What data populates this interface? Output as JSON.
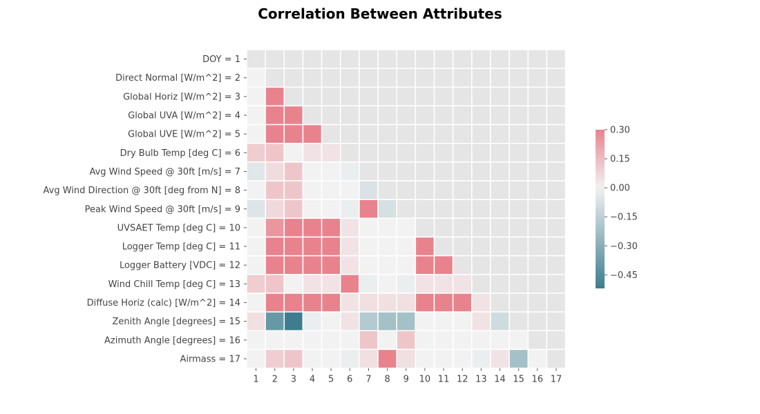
{
  "chart_data": {
    "type": "heatmap",
    "title": "Correlation Between Attributes",
    "row_labels": [
      "DOY = 1",
      "Direct Normal [W/m^2] = 2",
      "Global Horiz [W/m^2] = 3",
      "Global UVA [W/m^2] = 4",
      "Global UVE [W/m^2] = 5",
      "Dry Bulb Temp [deg C] = 6",
      "Avg Wind Speed @ 30ft [m/s] = 7",
      "Avg Wind Direction @ 30ft [deg from N] = 8",
      "Peak Wind Speed @ 30ft [m/s] = 9",
      "UVSAET Temp [deg C] = 10",
      "Logger Temp [deg C] = 11",
      "Logger Battery [VDC] = 12",
      "Wind Chill Temp [deg C] = 13",
      "Diffuse Horiz (calc) [W/m^2] = 14",
      "Zenith Angle [degrees] = 15",
      "Azimuth Angle [degrees] = 16",
      "Airmass = 17"
    ],
    "col_labels": [
      "1",
      "2",
      "3",
      "4",
      "5",
      "6",
      "7",
      "8",
      "9",
      "10",
      "11",
      "12",
      "13",
      "14",
      "15",
      "16",
      "17"
    ],
    "mask": "upper triangle including diagonal",
    "colorbar": {
      "min": -0.52,
      "max": 0.3,
      "ticks": [
        "0.30",
        "0.15",
        "0.00",
        "−0.15",
        "−0.30",
        "−0.45"
      ],
      "tick_values": [
        0.3,
        0.15,
        0.0,
        -0.15,
        -0.3,
        -0.45
      ]
    },
    "values": [
      [],
      [
        0.0
      ],
      [
        0.0,
        0.3
      ],
      [
        0.0,
        0.3,
        0.3
      ],
      [
        0.0,
        0.3,
        0.3,
        0.3
      ],
      [
        0.1,
        0.12,
        0.0,
        0.04,
        0.04
      ],
      [
        -0.05,
        0.06,
        0.12,
        0.0,
        0.0,
        -0.02
      ],
      [
        0.0,
        0.12,
        0.12,
        0.0,
        0.0,
        0.0,
        -0.07
      ],
      [
        -0.06,
        0.07,
        0.12,
        0.0,
        0.0,
        -0.02,
        0.3,
        -0.08
      ],
      [
        0.0,
        0.25,
        0.3,
        0.3,
        0.3,
        0.04,
        0.0,
        0.0,
        0.0
      ],
      [
        0.0,
        0.3,
        0.3,
        0.3,
        0.3,
        0.04,
        0.0,
        0.0,
        0.0,
        0.3
      ],
      [
        0.0,
        0.3,
        0.3,
        0.3,
        0.3,
        0.04,
        0.0,
        0.0,
        0.0,
        0.3,
        0.3
      ],
      [
        0.1,
        0.12,
        0.0,
        0.04,
        0.04,
        0.3,
        -0.02,
        0.0,
        -0.02,
        0.04,
        0.04,
        0.04
      ],
      [
        0.0,
        0.3,
        0.3,
        0.3,
        0.3,
        0.04,
        0.05,
        0.05,
        0.05,
        0.3,
        0.3,
        0.3,
        0.04
      ],
      [
        0.05,
        -0.4,
        -0.52,
        -0.02,
        0.0,
        0.04,
        -0.18,
        -0.22,
        -0.22,
        0.0,
        0.0,
        0.0,
        0.04,
        -0.1
      ],
      [
        0.0,
        0.0,
        0.0,
        0.0,
        0.0,
        0.0,
        0.12,
        0.0,
        0.12,
        0.0,
        0.0,
        0.0,
        0.0,
        0.0,
        0.0
      ],
      [
        0.0,
        0.1,
        0.12,
        0.0,
        0.0,
        -0.02,
        0.05,
        0.3,
        0.05,
        0.0,
        0.0,
        0.0,
        -0.02,
        0.04,
        -0.22,
        0.0
      ]
    ]
  }
}
